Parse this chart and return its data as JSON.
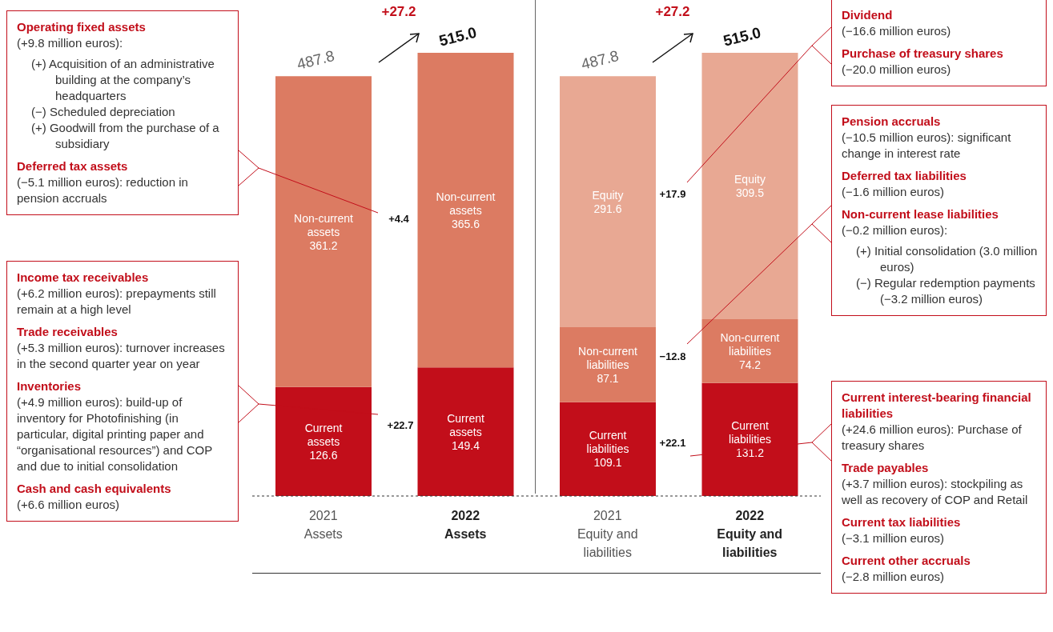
{
  "chart_data": {
    "type": "bar",
    "stacked": true,
    "categories": [
      "2021 Assets",
      "2022 Assets",
      "2021 Equity and liabilities",
      "2022 Equity and liabilities"
    ],
    "series": [
      {
        "color": "#c20e1a",
        "values": [
          126.6,
          149.4,
          109.1,
          131.2
        ],
        "value_labels": [
          "Current\nassets\n126.6",
          "Current\nassets\n149.4",
          "Current\nliabilities\n109.1",
          "Current\nliabilities\n131.2"
        ]
      },
      {
        "color": "#dc7b62",
        "values": [
          361.2,
          365.6,
          87.1,
          74.2
        ],
        "value_labels": [
          "Non-current\nassets\n361.2",
          "Non-current\nassets\n365.6",
          "Non-current\nliabilities\n87.1",
          "Non-current\nliabilities\n74.2"
        ]
      },
      {
        "color": "#e8a893",
        "values": [
          null,
          null,
          291.6,
          309.5
        ],
        "value_labels": [
          null,
          null,
          "Equity\n291.6",
          "Equity\n309.5"
        ]
      }
    ],
    "totals": [
      "487.8",
      "515.0",
      "487.8",
      "515.0"
    ],
    "annotations": [
      "Operating fixed assets\n(+9.8 million euros):\n(+) Acquisition of an administrative building at the company’s headquarters\n(−) Scheduled depreciation\n(+) Goodwill from the purchase of a subsidiary",
      "Deferred tax assets\n(−5.1 million euros): reduction in pension accruals",
      "Income tax receivables\n(+6.2 million euros): prepayments still remain at a high level",
      "Trade receivables\n(+5.3 million euros): turnover increases in the second quarter year on year",
      "Inventories\n(+4.9 million euros): build-up of inventory for Photofinishing (in particular, digital printing paper and “organisational resources”) and COP and due to initial consolidation",
      "Cash and cash equivalents\n(+6.6 million euros)",
      "Dividend\n(−16.6 million euros)",
      "Purchase of treasury shares\n(−20.0 million euros)",
      "Pension accruals\n(−10.5 million euros): significant change in interest rate",
      "Deferred tax liabilities\n(−1.6 million euros)",
      "Non-current lease liabilities\n(−0.2 million euros):\n(+) Initial consolidation (3.0 million euros)\n(−) Regular redemption payments (−3.2 million euros)",
      "Current interest-bearing financial liabilities\n(+24.6 million euros): Purchase of treasury shares",
      "Trade payables\n(+3.7 million euros): stockpiling as well as recovery of COP and Retail",
      "Current tax liabilities\n(−3.1 million euros)",
      "Current other accruals\n(−2.8 million euros)",
      "+27.2",
      "+27.2",
      "+4.4",
      "+22.7",
      "+17.9",
      "−12.8",
      "+22.1"
    ]
  }
}
